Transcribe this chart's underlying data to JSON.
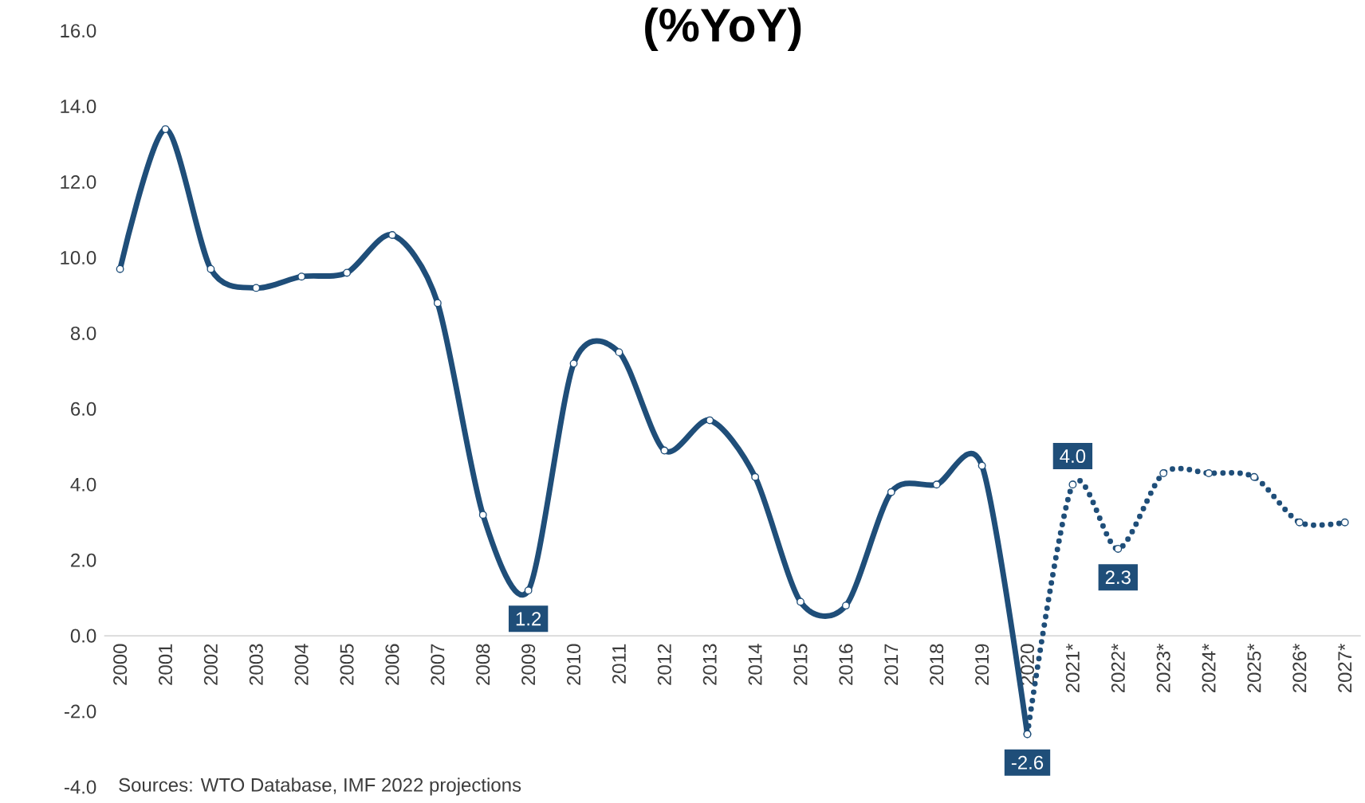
{
  "chart_data": {
    "type": "line",
    "title": "(%YoY)",
    "categories": [
      "2000",
      "2001",
      "2002",
      "2003",
      "2004",
      "2005",
      "2006",
      "2007",
      "2008",
      "2009",
      "2010",
      "2011",
      "2012",
      "2013",
      "2014",
      "2015",
      "2016",
      "2017",
      "2018",
      "2019",
      "2020",
      "2021*",
      "2022*",
      "2023*",
      "2024*",
      "2025*",
      "2026*",
      "2027*"
    ],
    "series": [
      {
        "color": "#1f4e79",
        "line_style": "solid",
        "values": [
          9.7,
          13.4,
          9.7,
          9.2,
          9.5,
          9.6,
          10.6,
          8.8,
          3.2,
          1.2,
          7.2,
          7.5,
          4.9,
          5.7,
          4.2,
          0.9,
          0.8,
          3.8,
          4.0,
          4.5,
          -2.6,
          null,
          null,
          null,
          null,
          null,
          null,
          null
        ],
        "value_labels": [
          null,
          null,
          null,
          null,
          null,
          null,
          null,
          null,
          null,
          "1.2",
          null,
          null,
          null,
          null,
          null,
          null,
          null,
          null,
          null,
          null,
          "-2.6",
          null,
          null,
          null,
          null,
          null,
          null,
          null
        ]
      },
      {
        "color": "#1f4e79",
        "line_style": "dotted",
        "values": [
          null,
          null,
          null,
          null,
          null,
          null,
          null,
          null,
          null,
          null,
          null,
          null,
          null,
          null,
          null,
          null,
          null,
          null,
          null,
          null,
          -2.6,
          4.0,
          2.3,
          4.3,
          4.3,
          4.2,
          3.0,
          3.0
        ],
        "value_labels": [
          null,
          null,
          null,
          null,
          null,
          null,
          null,
          null,
          null,
          null,
          null,
          null,
          null,
          null,
          null,
          null,
          null,
          null,
          null,
          null,
          null,
          "4.0",
          "2.3",
          null,
          null,
          null,
          null,
          null
        ]
      }
    ],
    "ylim": [
      -4,
      16
    ],
    "yticks": [
      {
        "value": -4,
        "label": "-4.0"
      },
      {
        "value": -2,
        "label": "-2.0"
      },
      {
        "value": 0,
        "label": "0.0"
      },
      {
        "value": 2,
        "label": "2.0"
      },
      {
        "value": 4,
        "label": "4.0"
      },
      {
        "value": 6,
        "label": "6.0"
      },
      {
        "value": 8,
        "label": "8.0"
      },
      {
        "value": 10,
        "label": "10.0"
      },
      {
        "value": 12,
        "label": "12.0"
      },
      {
        "value": 14,
        "label": "14.0"
      },
      {
        "value": 16,
        "label": "16.0"
      }
    ],
    "marker": "circle",
    "grid": false,
    "annotations": [
      "Sources: WTO Database, IMF 2022 projections"
    ]
  }
}
